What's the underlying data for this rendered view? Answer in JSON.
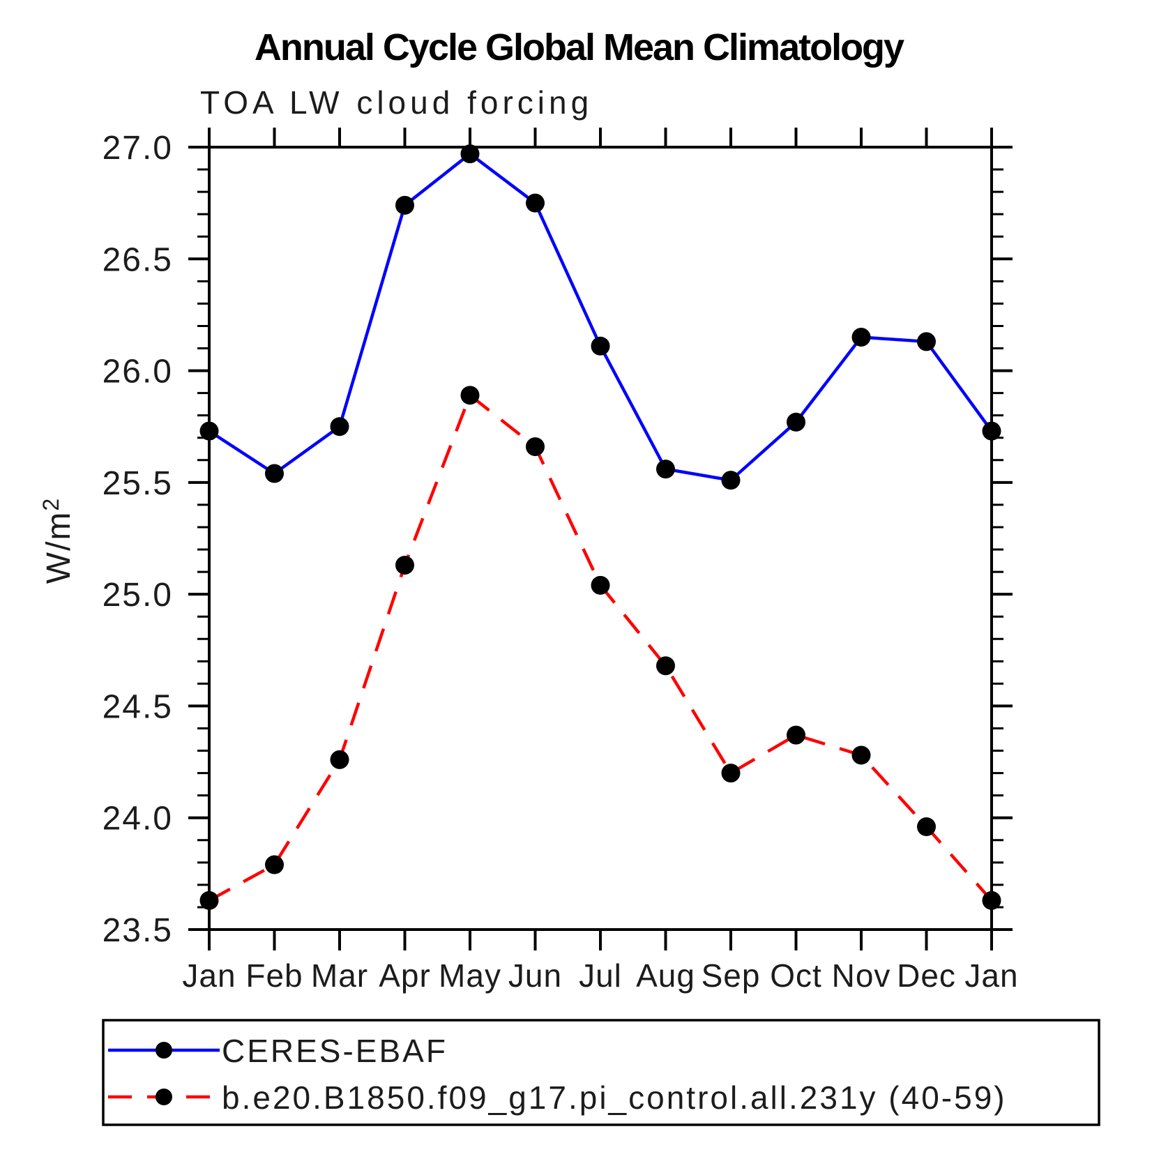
{
  "title": "Annual Cycle Global Mean Climatology",
  "subtitle": "TOA LW cloud forcing",
  "chart_data": {
    "type": "line",
    "title": "Annual Cycle Global Mean Climatology",
    "subtitle": "TOA LW cloud forcing",
    "ylabel": "W/m²",
    "xlabel": "",
    "categories": [
      "Jan",
      "Feb",
      "Mar",
      "Apr",
      "May",
      "Jun",
      "Jul",
      "Aug",
      "Sep",
      "Oct",
      "Nov",
      "Dec",
      "Jan"
    ],
    "ylim": [
      23.5,
      27.0
    ],
    "ytick_labels": [
      "23.5",
      "24.0",
      "24.5",
      "25.0",
      "25.5",
      "26.0",
      "26.5",
      "27.0"
    ],
    "ytick_minor_step": 0.1,
    "grid": false,
    "legend_position": "bottom",
    "marker_color": "#000000",
    "axis_color": "#000000",
    "series": [
      {
        "name": "CERES-EBAF",
        "color": "#0000ff",
        "style": "solid",
        "marker": "circle",
        "values": [
          25.73,
          25.54,
          25.75,
          26.74,
          26.97,
          26.75,
          26.11,
          25.56,
          25.51,
          25.77,
          26.15,
          26.13,
          25.73
        ]
      },
      {
        "name": "b.e20.B1850.f09_g17.pi_control.all.231y (40-59)",
        "color": "#ff0000",
        "style": "dashed",
        "marker": "circle",
        "values": [
          23.63,
          23.79,
          24.26,
          25.13,
          25.89,
          25.66,
          25.04,
          24.68,
          24.2,
          24.37,
          24.28,
          23.96,
          23.63
        ]
      }
    ]
  }
}
